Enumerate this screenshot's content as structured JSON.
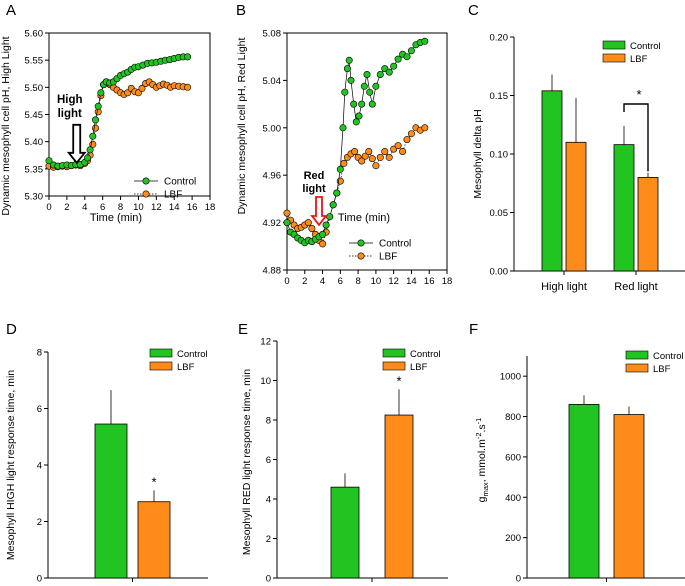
{
  "colors": {
    "control": "#22c422",
    "lbf": "#ff8c1a",
    "arrow_high": "#000000",
    "arrow_red": "#e8161c",
    "red_text": "#e8161c"
  },
  "legend": {
    "control": "Control",
    "lbf": "LBF"
  },
  "chart_data": [
    {
      "panel": "A",
      "type": "scatter",
      "xlabel": "Time (min)",
      "ylabel": "Dynamic mesophyll cell pH, High Light",
      "xlim": [
        0,
        18
      ],
      "ylim": [
        5.3,
        5.6
      ],
      "xticks": [
        "0",
        "2",
        "4",
        "6",
        "8",
        "10",
        "12",
        "14",
        "16",
        "18"
      ],
      "yticks": [
        "5.30",
        "5.35",
        "5.40",
        "5.45",
        "5.50",
        "5.55",
        "5.60"
      ],
      "annotation": {
        "lines": [
          "High",
          "light"
        ],
        "x": 3.1,
        "y": 5.35
      },
      "series": [
        {
          "name": "Control",
          "style": "solid",
          "points": [
            [
              0.0,
              5.365
            ],
            [
              0.5,
              5.357
            ],
            [
              1.0,
              5.355
            ],
            [
              1.5,
              5.356
            ],
            [
              2.0,
              5.357
            ],
            [
              2.5,
              5.356
            ],
            [
              3.0,
              5.358
            ],
            [
              3.5,
              5.358
            ],
            [
              4.0,
              5.362
            ],
            [
              4.3,
              5.37
            ],
            [
              4.6,
              5.385
            ],
            [
              4.9,
              5.41
            ],
            [
              5.2,
              5.44
            ],
            [
              5.5,
              5.465
            ],
            [
              5.8,
              5.49
            ],
            [
              6.1,
              5.505
            ],
            [
              6.4,
              5.51
            ],
            [
              6.8,
              5.508
            ],
            [
              7.2,
              5.51
            ],
            [
              7.6,
              5.516
            ],
            [
              8.0,
              5.522
            ],
            [
              8.4,
              5.525
            ],
            [
              8.8,
              5.528
            ],
            [
              9.2,
              5.533
            ],
            [
              9.6,
              5.537
            ],
            [
              10.0,
              5.538
            ],
            [
              10.5,
              5.541
            ],
            [
              11.0,
              5.544
            ],
            [
              11.5,
              5.545
            ],
            [
              12.0,
              5.546
            ],
            [
              12.5,
              5.548
            ],
            [
              13.0,
              5.55
            ],
            [
              13.5,
              5.551
            ],
            [
              14.0,
              5.553
            ],
            [
              14.5,
              5.555
            ],
            [
              15.0,
              5.556
            ],
            [
              15.5,
              5.556
            ]
          ]
        },
        {
          "name": "LBF",
          "style": "dotted",
          "points": [
            [
              0.0,
              5.355
            ],
            [
              0.5,
              5.353
            ],
            [
              1.0,
              5.354
            ],
            [
              1.5,
              5.355
            ],
            [
              2.0,
              5.354
            ],
            [
              2.5,
              5.356
            ],
            [
              3.0,
              5.357
            ],
            [
              3.5,
              5.356
            ],
            [
              4.0,
              5.36
            ],
            [
              4.3,
              5.365
            ],
            [
              4.6,
              5.375
            ],
            [
              4.9,
              5.395
            ],
            [
              5.2,
              5.425
            ],
            [
              5.5,
              5.455
            ],
            [
              5.8,
              5.485
            ],
            [
              6.1,
              5.505
            ],
            [
              6.4,
              5.51
            ],
            [
              6.8,
              5.505
            ],
            [
              7.2,
              5.5
            ],
            [
              7.6,
              5.495
            ],
            [
              8.0,
              5.49
            ],
            [
              8.4,
              5.487
            ],
            [
              8.8,
              5.49
            ],
            [
              9.2,
              5.498
            ],
            [
              9.6,
              5.492
            ],
            [
              10.0,
              5.49
            ],
            [
              10.4,
              5.498
            ],
            [
              10.8,
              5.507
            ],
            [
              11.2,
              5.51
            ],
            [
              11.6,
              5.505
            ],
            [
              12.0,
              5.5
            ],
            [
              12.4,
              5.503
            ],
            [
              12.8,
              5.506
            ],
            [
              13.2,
              5.504
            ],
            [
              13.6,
              5.5
            ],
            [
              14.0,
              5.503
            ],
            [
              14.5,
              5.502
            ],
            [
              15.0,
              5.501
            ],
            [
              15.5,
              5.5
            ]
          ]
        }
      ]
    },
    {
      "panel": "B",
      "type": "scatter",
      "xlabel": "Time (min)",
      "ylabel": "Dynamic mesophyll cell pH, Red Light",
      "xlim": [
        0,
        18
      ],
      "ylim": [
        4.88,
        5.08
      ],
      "xticks": [
        "0",
        "2",
        "4",
        "6",
        "8",
        "10",
        "12",
        "14",
        "16",
        "18"
      ],
      "yticks": [
        "4.88",
        "4.92",
        "4.96",
        "5.00",
        "5.04",
        "5.08"
      ],
      "annotation": {
        "lines": [
          "Red",
          "light"
        ],
        "x": 3.6,
        "y": 4.918
      },
      "series": [
        {
          "name": "Control",
          "style": "solid",
          "points": [
            [
              0.0,
              4.92
            ],
            [
              0.4,
              4.912
            ],
            [
              0.8,
              4.91
            ],
            [
              1.2,
              4.907
            ],
            [
              1.6,
              4.905
            ],
            [
              2.0,
              4.903
            ],
            [
              2.4,
              4.905
            ],
            [
              2.8,
              4.904
            ],
            [
              3.2,
              4.906
            ],
            [
              3.6,
              4.908
            ],
            [
              4.0,
              4.91
            ],
            [
              4.4,
              4.918
            ],
            [
              4.8,
              4.925
            ],
            [
              5.2,
              4.935
            ],
            [
              5.6,
              4.945
            ],
            [
              6.0,
              4.965
            ],
            [
              6.3,
              5.0
            ],
            [
              6.5,
              5.03
            ],
            [
              6.8,
              5.05
            ],
            [
              7.0,
              5.057
            ],
            [
              7.2,
              5.04
            ],
            [
              7.5,
              5.02
            ],
            [
              7.8,
              5.005
            ],
            [
              8.1,
              5.01
            ],
            [
              8.4,
              5.02
            ],
            [
              8.7,
              5.035
            ],
            [
              9.0,
              5.045
            ],
            [
              9.3,
              5.03
            ],
            [
              9.6,
              5.02
            ],
            [
              10.0,
              5.035
            ],
            [
              10.5,
              5.045
            ],
            [
              11.0,
              5.05
            ],
            [
              11.5,
              5.047
            ],
            [
              12.0,
              5.052
            ],
            [
              12.5,
              5.058
            ],
            [
              13.0,
              5.062
            ],
            [
              13.5,
              5.06
            ],
            [
              14.0,
              5.065
            ],
            [
              14.5,
              5.07
            ],
            [
              15.0,
              5.072
            ],
            [
              15.5,
              5.073
            ]
          ]
        },
        {
          "name": "LBF",
          "style": "dotted",
          "points": [
            [
              0.0,
              4.928
            ],
            [
              0.4,
              4.922
            ],
            [
              0.8,
              4.918
            ],
            [
              1.2,
              4.915
            ],
            [
              1.6,
              4.916
            ],
            [
              2.0,
              4.918
            ],
            [
              2.4,
              4.92
            ],
            [
              2.8,
              4.915
            ],
            [
              3.2,
              4.91
            ],
            [
              3.6,
              4.905
            ],
            [
              4.0,
              4.902
            ],
            [
              4.4,
              4.912
            ],
            [
              4.8,
              4.925
            ],
            [
              5.2,
              4.935
            ],
            [
              5.6,
              4.945
            ],
            [
              6.0,
              4.955
            ],
            [
              6.4,
              4.97
            ],
            [
              6.8,
              4.975
            ],
            [
              7.2,
              4.978
            ],
            [
              7.6,
              4.98
            ],
            [
              8.0,
              4.975
            ],
            [
              8.4,
              4.972
            ],
            [
              8.8,
              4.976
            ],
            [
              9.2,
              4.98
            ],
            [
              9.6,
              4.974
            ],
            [
              10.0,
              4.968
            ],
            [
              10.5,
              4.975
            ],
            [
              11.0,
              4.98
            ],
            [
              11.5,
              4.975
            ],
            [
              12.0,
              4.982
            ],
            [
              12.5,
              4.985
            ],
            [
              13.0,
              4.98
            ],
            [
              13.5,
              4.99
            ],
            [
              14.0,
              4.995
            ],
            [
              14.5,
              5.0
            ],
            [
              15.0,
              4.998
            ],
            [
              15.5,
              5.0
            ]
          ]
        }
      ]
    },
    {
      "panel": "C",
      "type": "bar",
      "ylabel": "Mesophyll delta pH",
      "categories": [
        "High light",
        "Red light"
      ],
      "ylim": [
        0.0,
        0.2
      ],
      "yticks": [
        "0.00",
        "0.05",
        "0.10",
        "0.15",
        "0.20"
      ],
      "series": [
        {
          "name": "Control",
          "values": [
            0.154,
            0.108
          ],
          "errors": [
            0.014,
            0.016
          ]
        },
        {
          "name": "LBF",
          "values": [
            0.11,
            0.08
          ],
          "errors": [
            0.038,
            0.004
          ]
        }
      ],
      "significance": {
        "category": "Red light",
        "label": "*"
      }
    },
    {
      "panel": "D",
      "type": "bar",
      "ylabel": "Mesophyll HIGH light response time, min",
      "ylim": [
        0,
        8
      ],
      "yticks": [
        "0",
        "2",
        "4",
        "6",
        "8"
      ],
      "series": [
        {
          "name": "Control",
          "values": [
            5.45
          ],
          "errors": [
            1.2
          ]
        },
        {
          "name": "LBF",
          "values": [
            2.7
          ],
          "errors": [
            0.4
          ]
        }
      ],
      "significance": {
        "label": "*"
      }
    },
    {
      "panel": "E",
      "type": "bar",
      "ylabel": "Mesophyll RED light response time, min",
      "ylim": [
        0,
        12
      ],
      "yticks": [
        "0",
        "2",
        "4",
        "6",
        "8",
        "10",
        "12"
      ],
      "series": [
        {
          "name": "Control",
          "values": [
            4.6
          ],
          "errors": [
            0.7
          ]
        },
        {
          "name": "LBF",
          "values": [
            8.25
          ],
          "errors": [
            1.3
          ]
        }
      ],
      "significance": {
        "label": "*"
      }
    },
    {
      "panel": "F",
      "type": "bar",
      "ylabel_main": "g",
      "ylabel_sub": "max",
      "ylabel_rest": ", mmol.m",
      "ylabel_sup1": "-2",
      "ylabel_mid": ".s",
      "ylabel_sup2": "-1",
      "ylim": [
        0,
        1100
      ],
      "yticks": [
        "0",
        "200",
        "400",
        "600",
        "800",
        "1000"
      ],
      "series": [
        {
          "name": "Control",
          "values": [
            860
          ],
          "errors": [
            45
          ]
        },
        {
          "name": "LBF",
          "values": [
            810
          ],
          "errors": [
            40
          ]
        }
      ]
    }
  ]
}
